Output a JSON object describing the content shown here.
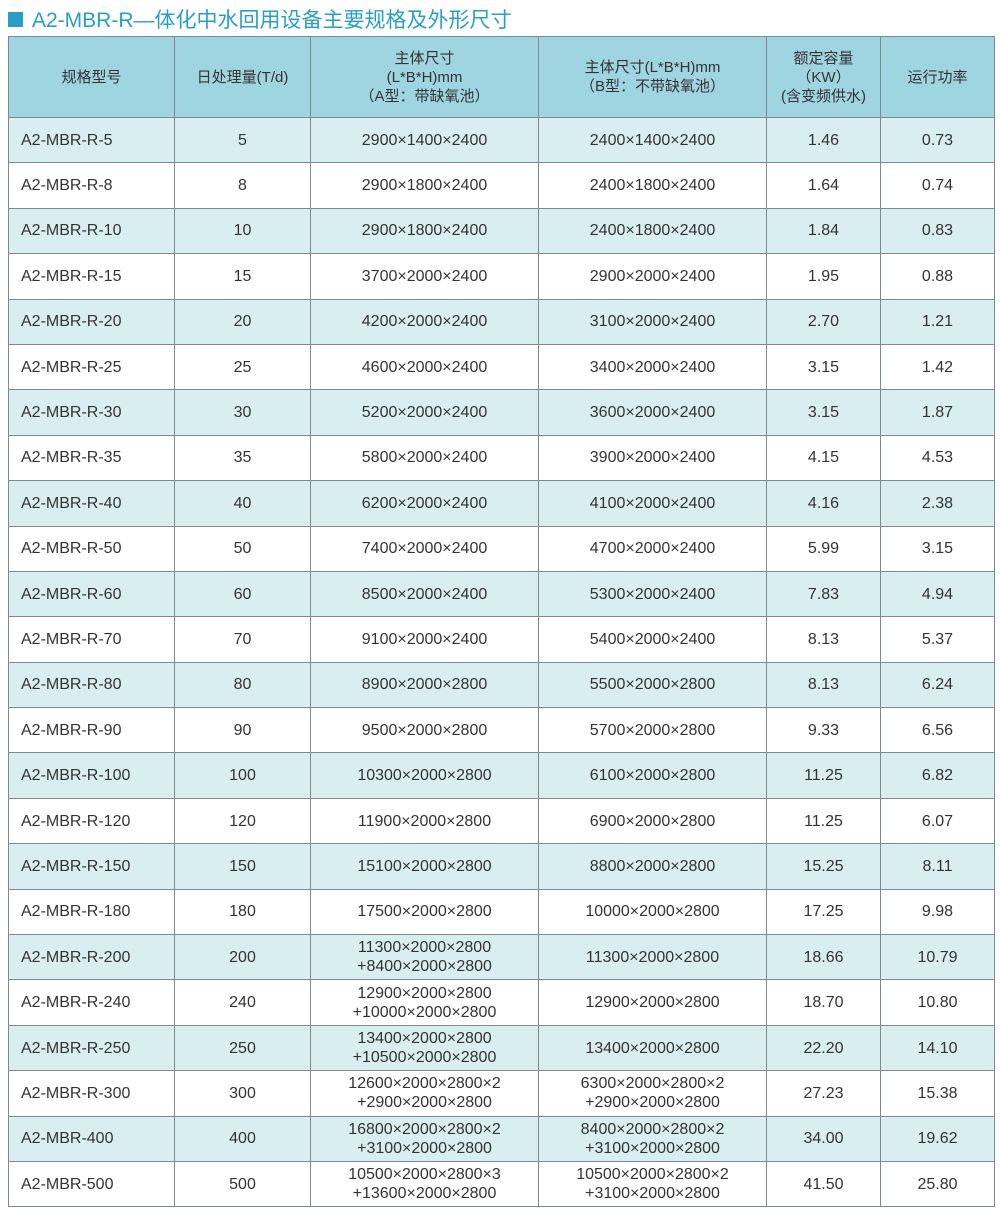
{
  "title": "A2-MBR-R—体化中水回用设备主要规格及外形尺寸",
  "colors": {
    "accent": "#2a9fc6",
    "header_bg": "#9fd4e1",
    "alt_row_bg": "#d8eef0"
  },
  "headers": [
    [
      "规格型号"
    ],
    [
      "日处理量(T/d)"
    ],
    [
      "主体尺寸",
      "(L*B*H)mm",
      "（A型：带缺氧池）"
    ],
    [
      "主体尺寸(L*B*H)mm",
      "（B型：不带缺氧池）"
    ],
    [
      "额定容量",
      "（KW）",
      "(含变频供水)"
    ],
    [
      "运行功率"
    ]
  ],
  "rows": [
    [
      "A2-MBR-R-5",
      "5",
      [
        "2900×1400×2400"
      ],
      [
        "2400×1400×2400"
      ],
      "1.46",
      "0.73"
    ],
    [
      "A2-MBR-R-8",
      "8",
      [
        "2900×1800×2400"
      ],
      [
        "2400×1800×2400"
      ],
      "1.64",
      "0.74"
    ],
    [
      "A2-MBR-R-10",
      "10",
      [
        "2900×1800×2400"
      ],
      [
        "2400×1800×2400"
      ],
      "1.84",
      "0.83"
    ],
    [
      "A2-MBR-R-15",
      "15",
      [
        "3700×2000×2400"
      ],
      [
        "2900×2000×2400"
      ],
      "1.95",
      "0.88"
    ],
    [
      "A2-MBR-R-20",
      "20",
      [
        "4200×2000×2400"
      ],
      [
        "3100×2000×2400"
      ],
      "2.70",
      "1.21"
    ],
    [
      "A2-MBR-R-25",
      "25",
      [
        "4600×2000×2400"
      ],
      [
        "3400×2000×2400"
      ],
      "3.15",
      "1.42"
    ],
    [
      "A2-MBR-R-30",
      "30",
      [
        "5200×2000×2400"
      ],
      [
        "3600×2000×2400"
      ],
      "3.15",
      "1.87"
    ],
    [
      "A2-MBR-R-35",
      "35",
      [
        "5800×2000×2400"
      ],
      [
        "3900×2000×2400"
      ],
      "4.15",
      "4.53"
    ],
    [
      "A2-MBR-R-40",
      "40",
      [
        "6200×2000×2400"
      ],
      [
        "4100×2000×2400"
      ],
      "4.16",
      "2.38"
    ],
    [
      "A2-MBR-R-50",
      "50",
      [
        "7400×2000×2400"
      ],
      [
        "4700×2000×2400"
      ],
      "5.99",
      "3.15"
    ],
    [
      "A2-MBR-R-60",
      "60",
      [
        "8500×2000×2400"
      ],
      [
        "5300×2000×2400"
      ],
      "7.83",
      "4.94"
    ],
    [
      "A2-MBR-R-70",
      "70",
      [
        "9100×2000×2400"
      ],
      [
        "5400×2000×2400"
      ],
      "8.13",
      "5.37"
    ],
    [
      "A2-MBR-R-80",
      "80",
      [
        "8900×2000×2800"
      ],
      [
        "5500×2000×2800"
      ],
      "8.13",
      "6.24"
    ],
    [
      "A2-MBR-R-90",
      "90",
      [
        "9500×2000×2800"
      ],
      [
        "5700×2000×2800"
      ],
      "9.33",
      "6.56"
    ],
    [
      "A2-MBR-R-100",
      "100",
      [
        "10300×2000×2800"
      ],
      [
        "6100×2000×2800"
      ],
      "11.25",
      "6.82"
    ],
    [
      "A2-MBR-R-120",
      "120",
      [
        "11900×2000×2800"
      ],
      [
        "6900×2000×2800"
      ],
      "11.25",
      "6.07"
    ],
    [
      "A2-MBR-R-150",
      "150",
      [
        "15100×2000×2800"
      ],
      [
        "8800×2000×2800"
      ],
      "15.25",
      "8.11"
    ],
    [
      "A2-MBR-R-180",
      "180",
      [
        "17500×2000×2800"
      ],
      [
        "10000×2000×2800"
      ],
      "17.25",
      "9.98"
    ],
    [
      "A2-MBR-R-200",
      "200",
      [
        "11300×2000×2800",
        "+8400×2000×2800"
      ],
      [
        "11300×2000×2800"
      ],
      "18.66",
      "10.79"
    ],
    [
      "A2-MBR-R-240",
      "240",
      [
        "12900×2000×2800",
        "+10000×2000×2800"
      ],
      [
        "12900×2000×2800"
      ],
      "18.70",
      "10.80"
    ],
    [
      "A2-MBR-R-250",
      "250",
      [
        "13400×2000×2800",
        "+10500×2000×2800"
      ],
      [
        "13400×2000×2800"
      ],
      "22.20",
      "14.10"
    ],
    [
      "A2-MBR-R-300",
      "300",
      [
        "12600×2000×2800×2",
        "+2900×2000×2800"
      ],
      [
        "6300×2000×2800×2",
        "+2900×2000×2800"
      ],
      "27.23",
      "15.38"
    ],
    [
      "A2-MBR-400",
      "400",
      [
        "16800×2000×2800×2",
        "+3100×2000×2800"
      ],
      [
        "8400×2000×2800×2",
        "+3100×2000×2800"
      ],
      "34.00",
      "19.62"
    ],
    [
      "A2-MBR-500",
      "500",
      [
        "10500×2000×2800×3",
        "+13600×2000×2800"
      ],
      [
        "10500×2000×2800×2",
        "+3100×2000×2800"
      ],
      "41.50",
      "25.80"
    ]
  ]
}
